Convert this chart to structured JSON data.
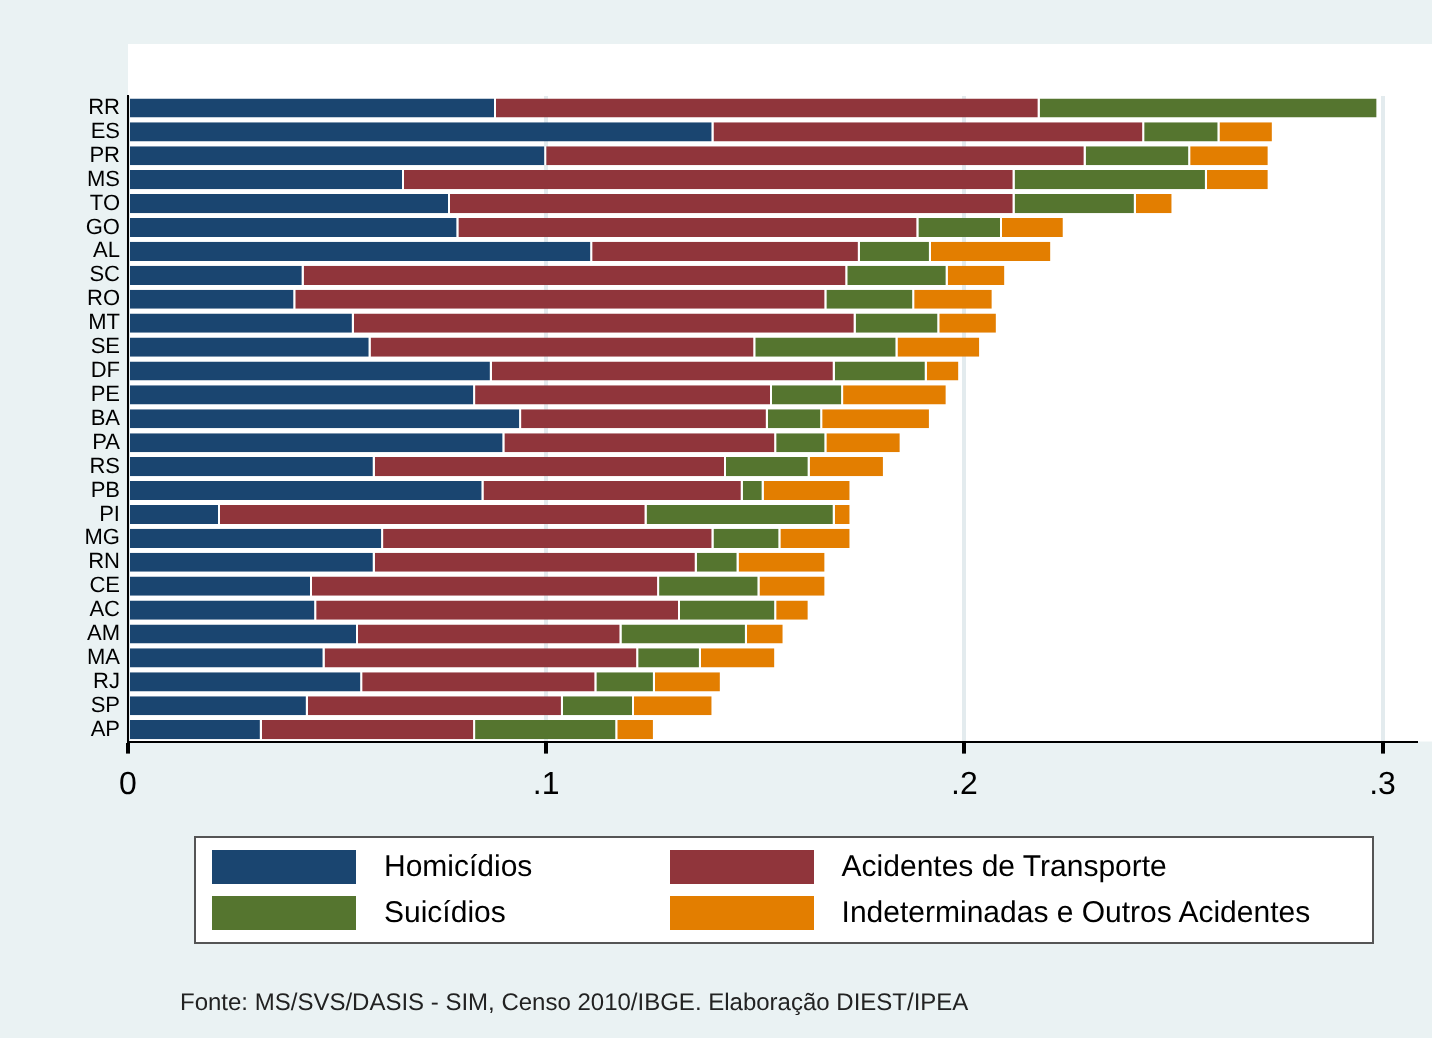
{
  "chart_data": {
    "type": "bar",
    "orientation": "horizontal",
    "stacked": true,
    "categories": [
      "RR",
      "ES",
      "PR",
      "MS",
      "TO",
      "GO",
      "AL",
      "SC",
      "RO",
      "MT",
      "SE",
      "DF",
      "PE",
      "BA",
      "PA",
      "RS",
      "PB",
      "PI",
      "MG",
      "RN",
      "CE",
      "AC",
      "AM",
      "MA",
      "RJ",
      "SP",
      "AP"
    ],
    "series": [
      {
        "name": "Homicídios",
        "color": "#1a4570",
        "values": [
          0.088,
          0.14,
          0.1,
          0.066,
          0.077,
          0.079,
          0.111,
          0.042,
          0.04,
          0.054,
          0.058,
          0.087,
          0.083,
          0.094,
          0.09,
          0.059,
          0.085,
          0.022,
          0.061,
          0.059,
          0.044,
          0.045,
          0.055,
          0.047,
          0.056,
          0.043,
          0.032
        ]
      },
      {
        "name": "Acidentes de Transporte",
        "color": "#90353b",
        "values": [
          0.13,
          0.103,
          0.129,
          0.146,
          0.135,
          0.11,
          0.064,
          0.13,
          0.127,
          0.12,
          0.092,
          0.082,
          0.071,
          0.059,
          0.065,
          0.084,
          0.062,
          0.102,
          0.079,
          0.077,
          0.083,
          0.087,
          0.063,
          0.075,
          0.056,
          0.061,
          0.051
        ]
      },
      {
        "name": "Suicídios",
        "color": "#55752f",
        "values": [
          0.081,
          0.018,
          0.025,
          0.046,
          0.029,
          0.02,
          0.017,
          0.024,
          0.021,
          0.02,
          0.034,
          0.022,
          0.017,
          0.013,
          0.012,
          0.02,
          0.005,
          0.045,
          0.016,
          0.01,
          0.024,
          0.023,
          0.03,
          0.015,
          0.014,
          0.017,
          0.034
        ]
      },
      {
        "name": "Indeterminadas e Outros Acidentes",
        "color": "#e37e00",
        "values": [
          0,
          0.013,
          0.019,
          0.015,
          0.009,
          0.015,
          0.029,
          0.014,
          0.019,
          0.014,
          0.02,
          0.008,
          0.025,
          0.026,
          0.018,
          0.018,
          0.021,
          0.004,
          0.017,
          0.021,
          0.016,
          0.008,
          0.009,
          0.018,
          0.016,
          0.019,
          0.009
        ]
      }
    ],
    "xlim": [
      0,
      0.308
    ],
    "xticks": [
      {
        "value": 0,
        "label": "0"
      },
      {
        "value": 0.1,
        "label": ".1"
      },
      {
        "value": 0.2,
        "label": ".2"
      },
      {
        "value": 0.3,
        "label": ".3"
      }
    ],
    "grid": "x",
    "legend": "bottom",
    "annotations": [
      "Fonte: MS/SVS/DASIS - SIM, Censo 2010/IBGE. Elaboração DIEST/IPEA"
    ]
  }
}
